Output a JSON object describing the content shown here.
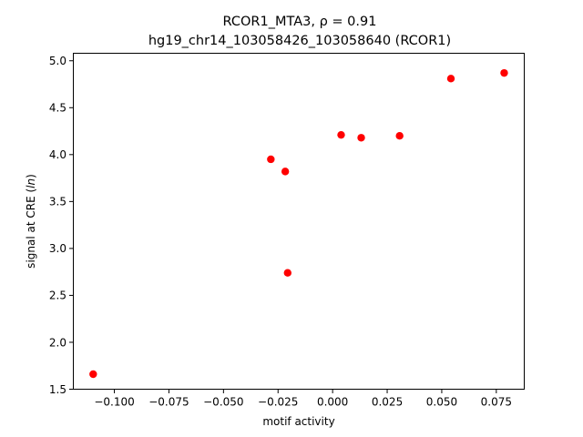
{
  "chart_data": {
    "type": "scatter",
    "title_line1": "RCOR1_MTA3, ρ = 0.91",
    "title_line2": "hg19_chr14_103058426_103058640 (RCOR1)",
    "xlabel": "motif activity",
    "ylabel_prefix": "signal at CRE (",
    "ylabel_italic": "ln",
    "ylabel_suffix": ")",
    "xlim": [
      -0.1188,
      0.0878
    ],
    "ylim": [
      1.5,
      5.08
    ],
    "xticks": [
      {
        "value": -0.1,
        "label": "−0.100"
      },
      {
        "value": -0.075,
        "label": "−0.075"
      },
      {
        "value": -0.05,
        "label": "−0.050"
      },
      {
        "value": -0.025,
        "label": "−0.025"
      },
      {
        "value": 0.0,
        "label": "0.000"
      },
      {
        "value": 0.025,
        "label": "0.025"
      },
      {
        "value": 0.05,
        "label": "0.050"
      },
      {
        "value": 0.075,
        "label": "0.075"
      }
    ],
    "yticks": [
      {
        "value": 1.5,
        "label": "1.5"
      },
      {
        "value": 2.0,
        "label": "2.0"
      },
      {
        "value": 2.5,
        "label": "2.5"
      },
      {
        "value": 3.0,
        "label": "3.0"
      },
      {
        "value": 3.5,
        "label": "3.5"
      },
      {
        "value": 4.0,
        "label": "4.0"
      },
      {
        "value": 4.5,
        "label": "4.5"
      },
      {
        "value": 5.0,
        "label": "5.0"
      }
    ],
    "marker_color": "#ff0000",
    "points": [
      {
        "x": -0.1097,
        "y": 1.66
      },
      {
        "x": -0.0283,
        "y": 3.95
      },
      {
        "x": -0.0217,
        "y": 3.82
      },
      {
        "x": -0.0206,
        "y": 2.74
      },
      {
        "x": 0.0039,
        "y": 4.21
      },
      {
        "x": 0.0131,
        "y": 4.18
      },
      {
        "x": 0.0307,
        "y": 4.2
      },
      {
        "x": 0.0542,
        "y": 4.81
      },
      {
        "x": 0.0786,
        "y": 4.87
      }
    ],
    "grid": false,
    "legend": "none"
  }
}
